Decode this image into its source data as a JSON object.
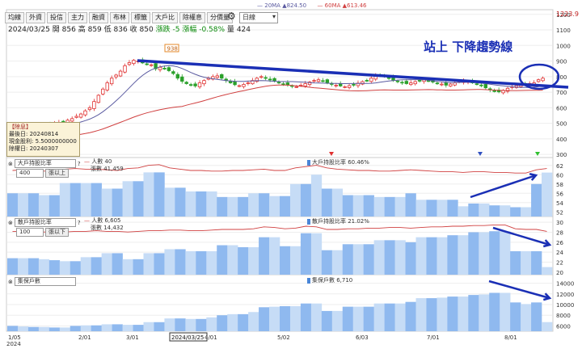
{
  "toolbar": {
    "buttons": [
      "均線",
      "外資",
      "投信",
      "主力",
      "融資",
      "布林",
      "標籤",
      "大戶比",
      "除權息",
      "分價量"
    ],
    "period": "日線"
  },
  "info": {
    "date": "2024/03/25",
    "open_label": "開",
    "open": "856",
    "high_label": "高",
    "high": "859",
    "low_label": "低",
    "low": "836",
    "close_label": "收",
    "close": "850",
    "change_label": "漲跌",
    "change": "-5",
    "pct_label": "漲幅",
    "pct": "-0.58%",
    "vol_label": "量",
    "vol": "424"
  },
  "ma_legend": {
    "ma20": "20MA ▲824.50",
    "ma60": "60MA ▲613.46"
  },
  "annotation": "站上 下降趨勢線",
  "peak_label": "938",
  "price_top_label": "1223.9",
  "note": {
    "title": "【除息】",
    "l1": "最後日: 20240814",
    "l2": "現金股利: 5.5000000000",
    "l3": "除權日: 20240307"
  },
  "panes": [
    {
      "selector": "大戶持股比率",
      "count_sel": "400",
      "btn": "張以上",
      "legend1": "人數 40",
      "legend2": "張數 41,459",
      "legend_right": "大戶持股比率 60.46%"
    },
    {
      "selector": "散戶持股比率",
      "count_sel": "100",
      "btn": "張以下",
      "legend1": "人數 6,605",
      "legend2": "張數 14,432",
      "legend_right": "散戶持股比率 21.02%"
    },
    {
      "selector": "集保戶數",
      "legend_right": "集保戶數 6,710"
    }
  ],
  "x_axis": {
    "year": "2024",
    "labels": [
      "1/05",
      "2/01",
      "3/01",
      "2024/03/25",
      "4/01",
      "5/02",
      "6/03",
      "7/01",
      "8/01"
    ]
  },
  "colors": {
    "up": "#e03030",
    "down": "#2aa02a",
    "ma20": "#5a5aa0",
    "ma60": "#d04040",
    "trend": "#1a2fb5",
    "bar_dark": "#8fb9ef",
    "bar_light": "#c6dcf6"
  },
  "chart_data": [
    {
      "type": "candlestick",
      "title": "",
      "y_ticks": [
        300,
        400,
        500,
        600,
        700,
        800,
        900,
        1000,
        1100,
        1200
      ],
      "ylim": [
        280,
        1230
      ],
      "series_close": [
        462,
        465,
        468,
        470,
        472,
        475,
        480,
        486,
        490,
        496,
        500,
        505,
        512,
        520,
        530,
        545,
        560,
        580,
        600,
        640,
        680,
        720,
        760,
        790,
        810,
        835,
        870,
        890,
        905,
        900,
        888,
        880,
        876,
        850,
        860,
        850,
        838,
        820,
        790,
        770,
        755,
        745,
        740,
        760,
        775,
        790,
        800,
        805,
        790,
        775,
        760,
        748,
        742,
        750,
        760,
        775,
        790,
        800,
        790,
        780,
        770,
        760,
        752,
        748,
        740,
        735,
        745,
        755,
        765,
        775,
        780,
        772,
        762,
        750,
        745,
        740,
        735,
        742,
        748,
        758,
        768,
        775,
        790,
        805,
        812,
        800,
        788,
        778,
        770,
        762,
        755,
        760,
        768,
        775,
        780,
        772,
        765,
        758,
        752,
        745,
        752,
        760,
        768,
        772,
        768,
        760,
        752,
        742,
        728,
        715,
        705,
        702,
        712,
        725,
        735,
        742,
        748,
        752,
        756,
        760,
        780,
        790
      ],
      "ma20_range": [
        420,
        824
      ],
      "ma60_range": [
        330,
        740
      ]
    },
    {
      "type": "area",
      "title": "大戶持股比率",
      "y_ticks": [
        52,
        54,
        56,
        58,
        60,
        62
      ],
      "ylim": [
        51,
        63
      ],
      "ratio": [
        56.0,
        56.0,
        56.0,
        55.6,
        55.6,
        58.2,
        58.2,
        58.2,
        58.2,
        57.0,
        57.0,
        58.6,
        58.6,
        60.5,
        60.5,
        57.2,
        57.2,
        56.4,
        56.4,
        56.4,
        55.2,
        55.2,
        55.2,
        56.0,
        56.0,
        55.4,
        55.4,
        58.0,
        58.0,
        60.0,
        57.0,
        57.0,
        55.6,
        55.6,
        55.6,
        55.2,
        55.2,
        55.2,
        56.0,
        54.6,
        54.6,
        54.6,
        54.6,
        53.2,
        53.8,
        53.8,
        53.4,
        53.4,
        53.0,
        53.0,
        58.0,
        60.46
      ],
      "people": [
        0.5,
        0.55,
        0.5,
        0.45,
        0.45,
        0.6,
        0.65,
        0.6,
        0.6,
        0.55,
        0.5,
        0.65,
        0.7,
        0.9,
        0.95,
        0.7,
        0.6,
        0.5,
        0.5,
        0.45,
        0.45,
        0.5,
        0.5,
        0.55,
        0.6,
        0.5,
        0.5,
        0.7,
        0.8,
        0.9,
        0.7,
        0.6,
        0.55,
        0.5,
        0.5,
        0.45,
        0.45,
        0.5,
        0.55,
        0.5,
        0.45,
        0.4,
        0.4,
        0.35,
        0.4,
        0.4,
        0.35,
        0.35,
        0.3,
        0.3,
        0.55,
        0.65
      ]
    },
    {
      "type": "area",
      "title": "散戶持股比率",
      "y_ticks": [
        20,
        22,
        24,
        26,
        28,
        30
      ],
      "ylim": [
        19.5,
        30.5
      ],
      "ratio": [
        22.8,
        22.8,
        22.8,
        22.6,
        22.4,
        22.2,
        22.2,
        23.0,
        23.0,
        23.8,
        23.8,
        22.6,
        22.6,
        23.8,
        23.8,
        24.6,
        24.6,
        24.2,
        24.2,
        24.2,
        25.4,
        25.4,
        25.0,
        25.0,
        27.0,
        27.0,
        25.2,
        25.2,
        27.8,
        27.8,
        24.4,
        24.4,
        25.6,
        25.6,
        25.6,
        26.4,
        26.4,
        26.4,
        26.0,
        27.0,
        27.0,
        27.0,
        27.4,
        27.4,
        28.0,
        28.0,
        28.2,
        28.2,
        24.2,
        24.2,
        24.2,
        21.02
      ],
      "people": [
        0.35,
        0.35,
        0.3,
        0.3,
        0.3,
        0.3,
        0.35,
        0.35,
        0.4,
        0.35,
        0.35,
        0.3,
        0.35,
        0.4,
        0.4,
        0.45,
        0.45,
        0.4,
        0.4,
        0.45,
        0.5,
        0.5,
        0.5,
        0.55,
        0.7,
        0.65,
        0.55,
        0.6,
        0.75,
        0.7,
        0.5,
        0.5,
        0.55,
        0.55,
        0.6,
        0.6,
        0.65,
        0.65,
        0.6,
        0.65,
        0.7,
        0.7,
        0.75,
        0.75,
        0.8,
        0.8,
        0.85,
        0.85,
        0.55,
        0.5,
        0.5,
        0.35
      ]
    },
    {
      "type": "area",
      "title": "集保戶數",
      "y_ticks": [
        6000,
        8000,
        10000,
        12000,
        14000
      ],
      "ylim": [
        5000,
        15000
      ],
      "values": [
        6000,
        5900,
        5800,
        5800,
        5700,
        5700,
        6000,
        6100,
        6100,
        6300,
        6300,
        6200,
        6200,
        6700,
        6700,
        7400,
        7400,
        7300,
        7300,
        7600,
        8000,
        8200,
        8200,
        8600,
        9500,
        9600,
        9700,
        9700,
        10200,
        10200,
        8800,
        8800,
        9600,
        9600,
        9600,
        10200,
        10200,
        10200,
        10500,
        11200,
        11200,
        11300,
        11500,
        11500,
        11800,
        11900,
        12200,
        12200,
        10400,
        10100,
        10400,
        6710
      ]
    }
  ]
}
